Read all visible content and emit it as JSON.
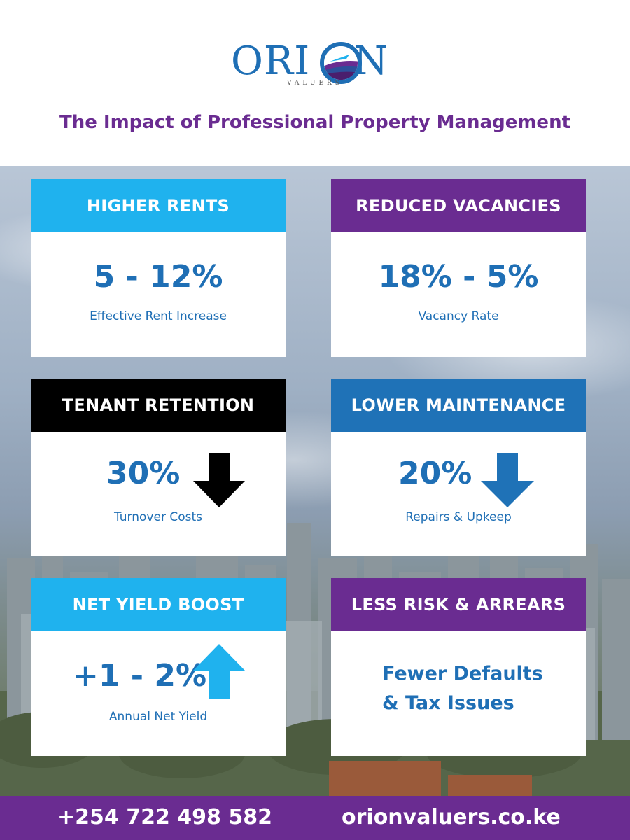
{
  "brand": {
    "name_left": "ORI",
    "name_right": "N",
    "tagline": "VALUERS"
  },
  "title": "The Impact of Professional Property Management",
  "cards": [
    {
      "heading": "HIGHER RENTS",
      "value": "5 - 12%",
      "caption": "Effective Rent Increase",
      "color": "#1fb2ee"
    },
    {
      "heading": "REDUCED VACANCIES",
      "value": "18% - 5%",
      "caption": "Vacancy Rate",
      "color": "#6a2c91"
    },
    {
      "heading": "TENANT RETENTION",
      "value": "30%",
      "caption": "Turnover Costs",
      "color": "#000000",
      "icon": "arrow-down-icon"
    },
    {
      "heading": "LOWER MAINTENANCE",
      "value": "20%",
      "caption": "Repairs & Upkeep",
      "color": "#1f72b7",
      "icon": "arrow-down-icon"
    },
    {
      "heading": "NET YIELD BOOST",
      "value": "+1 - 2%",
      "caption": "Annual Net Yield",
      "color": "#1fb2ee",
      "icon": "arrow-up-icon"
    },
    {
      "heading": "LESS RISK & ARREARS",
      "lines": [
        "Fewer Defaults",
        "& Tax Issues"
      ],
      "color": "#6a2c91"
    }
  ],
  "footer": {
    "phone": "+254 722 498 582",
    "website": "orionvaluers.co.ke",
    "color": "#6a2c91"
  },
  "colors": {
    "text_blue": "#1f6fb5",
    "purple": "#6a2c91",
    "sky_blue": "#1fb2ee"
  }
}
